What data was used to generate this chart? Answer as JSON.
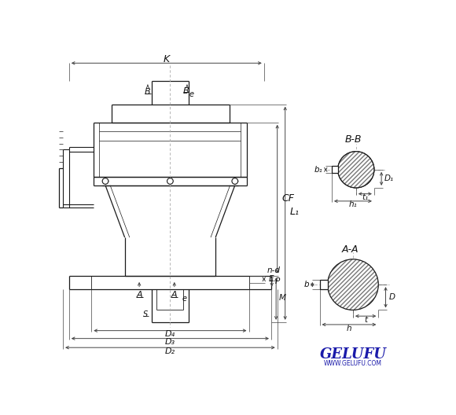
{
  "bg_color": "#ffffff",
  "line_color": "#1a1a1a",
  "dim_color": "#444444",
  "gelufu_color": "#1a1aaa",
  "figsize": [
    5.8,
    5.28
  ],
  "dpi": 100,
  "labels": {
    "K": "K",
    "B_left": "B",
    "B_right": "B",
    "e_top": "e",
    "CF": "CF",
    "L1": "L₁",
    "A_left": "A",
    "A_right": "A",
    "e_bottom": "e",
    "S": "S",
    "D4": "D₄",
    "D3": "D₃",
    "D2": "D₂",
    "nd": "n-d",
    "E": "E",
    "P": "P",
    "M": "M",
    "BB": "B-B",
    "b1": "b₁",
    "D1": "D₁",
    "t1": "t₁",
    "h1": "h₁",
    "AA": "A-A",
    "b": "b",
    "D": "D",
    "t": "t",
    "h": "h"
  }
}
